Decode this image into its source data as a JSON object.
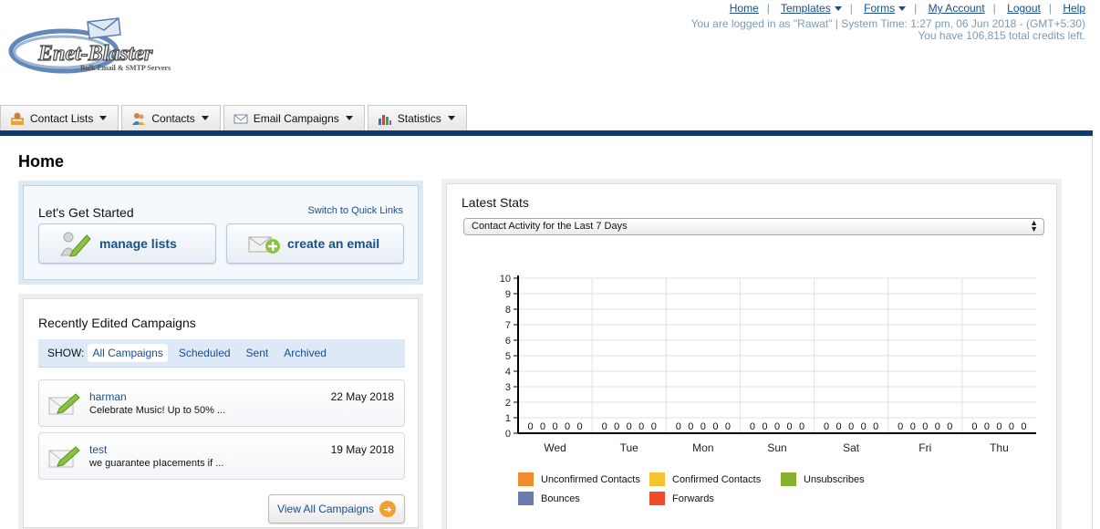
{
  "brand": {
    "name": "Enet-Blaster",
    "tagline": "Bulk Email & SMTP Servers"
  },
  "topnav": [
    {
      "label": "Home",
      "dropdown": false
    },
    {
      "label": "Templates",
      "dropdown": true
    },
    {
      "label": "Forms",
      "dropdown": true
    },
    {
      "label": "My Account",
      "dropdown": false
    },
    {
      "label": "Logout",
      "dropdown": false
    },
    {
      "label": "Help",
      "dropdown": false
    }
  ],
  "status": {
    "line1": "You are logged in as \"Rawat\" | System Time: 1:27 pm, 06 Jun 2018 - (GMT+5:30)",
    "line2": "You have 106,815 total credits left."
  },
  "tabs": [
    {
      "label": "Contact Lists",
      "icon": "contact-lists-icon"
    },
    {
      "label": "Contacts",
      "icon": "contacts-icon"
    },
    {
      "label": "Email Campaigns",
      "icon": "envelope-icon"
    },
    {
      "label": "Statistics",
      "icon": "bar-chart-icon"
    }
  ],
  "page_title": "Home",
  "get_started": {
    "title": "Let's Get Started",
    "switch_link": "Switch to Quick Links",
    "manage_lists": "manage lists",
    "create_email": "create an email"
  },
  "recent": {
    "title": "Recently Edited Campaigns",
    "show_label": "SHOW:",
    "filters": [
      "All Campaigns",
      "Scheduled",
      "Sent",
      "Archived"
    ],
    "active_filter": "All Campaigns",
    "campaigns": [
      {
        "name": "harman",
        "desc": "Celebrate Music! Up to 50% ...",
        "date": "22 May 2018"
      },
      {
        "name": "test",
        "desc": "we guarantee pIacements if ...",
        "date": "19 May 2018"
      }
    ],
    "view_all": "View All Campaigns"
  },
  "stats": {
    "title": "Latest Stats",
    "select_value": "Contact Activity for the Last 7 Days"
  },
  "chart_data": {
    "type": "bar",
    "categories": [
      "Wed",
      "Tue",
      "Mon",
      "Sun",
      "Sat",
      "Fri",
      "Thu"
    ],
    "ylim": [
      0,
      10
    ],
    "yticks": [
      "0",
      "1",
      "2",
      "3",
      "4",
      "5",
      "6",
      "7",
      "8",
      "9",
      "10"
    ],
    "grid": true,
    "legend_position": "bottom",
    "series": [
      {
        "name": "Unconfirmed Contacts",
        "color": "#f28a2e",
        "values": [
          0,
          0,
          0,
          0,
          0,
          0,
          0
        ]
      },
      {
        "name": "Confirmed Contacts",
        "color": "#f7c22f",
        "values": [
          0,
          0,
          0,
          0,
          0,
          0,
          0
        ]
      },
      {
        "name": "Unsubscribes",
        "color": "#86b02d",
        "values": [
          0,
          0,
          0,
          0,
          0,
          0,
          0
        ]
      },
      {
        "name": "Bounces",
        "color": "#6b7bb0",
        "values": [
          0,
          0,
          0,
          0,
          0,
          0,
          0
        ]
      },
      {
        "name": "Forwards",
        "color": "#ee4b2b",
        "values": [
          0,
          0,
          0,
          0,
          0,
          0,
          0
        ]
      }
    ]
  }
}
